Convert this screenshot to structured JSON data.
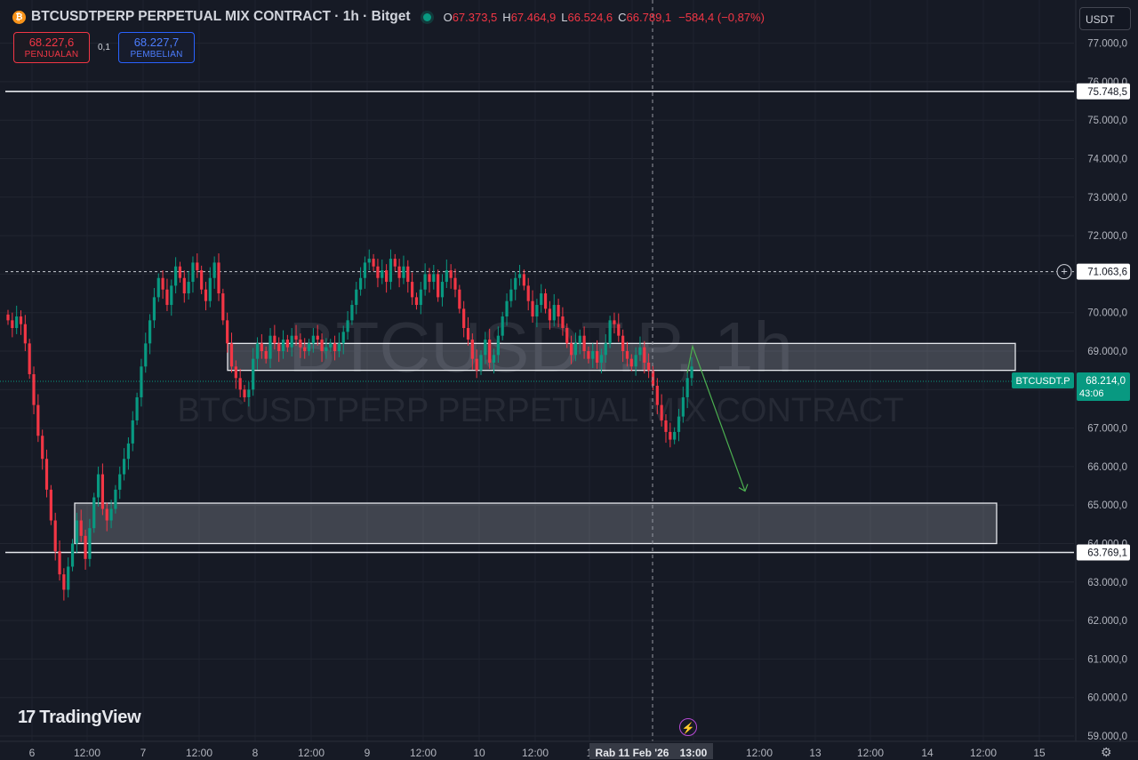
{
  "header": {
    "symbol_icon": "₿",
    "title": "BTCUSDTPERP PERPETUAL MIX CONTRACT · 1h · Bitget",
    "ohlc": [
      {
        "k": "O",
        "v": "67.373,5"
      },
      {
        "k": "H",
        "v": "67.464,9"
      },
      {
        "k": "L",
        "v": "66.524,6"
      },
      {
        "k": "C",
        "v": "66.789,1"
      }
    ],
    "change": "−584,4 (−0,87%)"
  },
  "trade": {
    "sell_price": "68.227,6",
    "sell_label": "PENJUALAN",
    "spread": "0,1",
    "buy_price": "68.227,7",
    "buy_label": "PEMBELIAN"
  },
  "currency_select": "USDT",
  "watermark": {
    "big": "BTCUSDT.P, 1h",
    "small": "BTCUSDTPERP PERPETUAL MIX CONTRACT"
  },
  "logo": "TradingView",
  "colors": {
    "background": "#161a25",
    "up": "#089981",
    "down": "#f23645",
    "zone_fill": "rgba(215,218,228,0.22)",
    "arrow": "#4caf50"
  },
  "chart_data": {
    "type": "candlestick",
    "symbol": "BTCUSDT.P",
    "interval": "1h",
    "y_axis": {
      "min": 59000,
      "max": 77000,
      "ticks": [
        "59.000,0",
        "60.000,0",
        "61.000,0",
        "62.000,0",
        "63.000,0",
        "64.000,0",
        "65.000,0",
        "66.000,0",
        "67.000,0",
        "68.000,0",
        "69.000,0",
        "70.000,0",
        "71.000,0",
        "72.000,0",
        "73.000,0",
        "74.000,0",
        "75.000,0",
        "76.000,0",
        "77.000,0"
      ]
    },
    "x_axis": {
      "ticks": [
        "6",
        "12:00",
        "7",
        "12:00",
        "8",
        "12:00",
        "9",
        "12:00",
        "10",
        "12:00",
        "1",
        "Rab 11 Feb '26",
        "13:00",
        "12:00",
        "13",
        "12:00",
        "14",
        "12:00",
        "15"
      ]
    },
    "horizontal_lines": [
      {
        "price": 75748.5,
        "label": "75.748,5",
        "style": "solid"
      },
      {
        "price": 63769.1,
        "label": "63.769,1",
        "style": "solid"
      },
      {
        "price": 71063.6,
        "label": "71.063,6",
        "style": "dashed"
      }
    ],
    "current_price": {
      "symbol": "BTCUSDT.P",
      "price": 68214.0,
      "label": "68.214,0",
      "countdown": "43:06"
    },
    "zones": [
      {
        "from": 68500,
        "to": 69200
      },
      {
        "from": 64000,
        "to": 65050
      }
    ],
    "projection_arrow": {
      "from_price": 68800,
      "to_price": 65500
    },
    "crosshair": {
      "time_label": "Rab 11 Feb '26",
      "hour_label": "13:00"
    },
    "candles_close": [
      69800,
      69600,
      69900,
      69700,
      69200,
      68400,
      67600,
      66800,
      66200,
      65400,
      64600,
      63800,
      63200,
      62800,
      63400,
      64000,
      64600,
      64200,
      63600,
      64400,
      65200,
      65800,
      64900,
      64600,
      64900,
      65400,
      65800,
      66200,
      66600,
      67200,
      67800,
      68600,
      69200,
      69800,
      70400,
      70900,
      70600,
      70200,
      70700,
      71200,
      70900,
      70500,
      70800,
      71300,
      71100,
      70600,
      70300,
      70900,
      71300,
      70500,
      69800,
      69200,
      68600,
      68300,
      68000,
      67800,
      68000,
      68800,
      69200,
      69000,
      68800,
      69400,
      69200,
      69000,
      69300,
      69100,
      69400,
      69300,
      69100,
      69000,
      69200,
      69400,
      69300,
      69000,
      69100,
      69200,
      69000,
      69200,
      69500,
      69800,
      70200,
      70600,
      70900,
      71300,
      71400,
      71200,
      70900,
      71100,
      70800,
      71400,
      71200,
      70900,
      71200,
      70800,
      70400,
      70200,
      70600,
      71000,
      70800,
      71000,
      70400,
      70800,
      71100,
      70900,
      70600,
      70100,
      69600,
      69300,
      68800,
      68500,
      68900,
      69300,
      68700,
      68900,
      69400,
      69900,
      70300,
      70600,
      70900,
      71000,
      70700,
      70300,
      69900,
      70200,
      70500,
      70100,
      69800,
      70200,
      69900,
      69600,
      69200,
      68900,
      69200,
      69400,
      69000,
      68800,
      69000,
      68700,
      68900,
      69200,
      69800,
      69700,
      69400,
      69000,
      68800,
      68600,
      68900,
      69100,
      68700,
      68500,
      68100,
      67600,
      67200,
      66900,
      66700,
      66900,
      67300,
      67800,
      68300,
      68600
    ]
  }
}
